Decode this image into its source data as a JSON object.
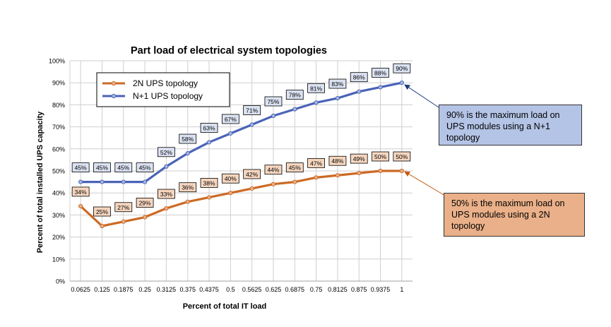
{
  "colors": {
    "n1": "#4a63b8",
    "n1_point": "#a8b8de",
    "twoN": "#cc6a24",
    "twoN_point": "#ebb08a",
    "n1_label_bg": "#dbe2f2",
    "twoN_label_bg": "#f6d6bf",
    "callout_blue": "#b4c4e6",
    "callout_orange": "#eab089",
    "grid": "#cfcfcf"
  },
  "chart_data": {
    "type": "line",
    "title": "Part load of electrical system topologies",
    "xlabel": "Percent of total IT load",
    "ylabel": "Percent of total installed UPS capacity",
    "x": [
      "0.0625",
      "0.125",
      "0.1875",
      "0.25",
      "0.3125",
      "0.375",
      "0.4375",
      "0.5",
      "0.5625",
      "0.625",
      "0.6875",
      "0.75",
      "0.8125",
      "0.875",
      "0.9375",
      "1"
    ],
    "yticks": [
      "0%",
      "10%",
      "20%",
      "30%",
      "40%",
      "50%",
      "60%",
      "70%",
      "80%",
      "90%",
      "100%"
    ],
    "ylim": [
      0,
      100
    ],
    "grid": true,
    "legend_position": "top-left",
    "series": [
      {
        "name": "2N UPS topology",
        "values": [
          34,
          25,
          27,
          29,
          33,
          36,
          38,
          40,
          42,
          44,
          45,
          47,
          48,
          49,
          50,
          50
        ],
        "labels": [
          "34%",
          "25%",
          "27%",
          "29%",
          "33%",
          "36%",
          "38%",
          "40%",
          "42%",
          "44%",
          "45%",
          "47%",
          "48%",
          "49%",
          "50%",
          "50%"
        ]
      },
      {
        "name": "N+1 UPS topology",
        "values": [
          45,
          45,
          45,
          45,
          52,
          58,
          63,
          67,
          71,
          75,
          78,
          81,
          83,
          86,
          88,
          90
        ],
        "labels": [
          "45%",
          "45%",
          "45%",
          "45%",
          "52%",
          "58%",
          "63%",
          "67%",
          "71%",
          "75%",
          "78%",
          "81%",
          "83%",
          "86%",
          "88%",
          "90%"
        ]
      }
    ]
  },
  "annotations": {
    "n1_max": "90% is the maximum  load on UPS modules using a N+1 topology",
    "twoN_max": "50% is the maximum  load on UPS modules using a 2N topology"
  }
}
